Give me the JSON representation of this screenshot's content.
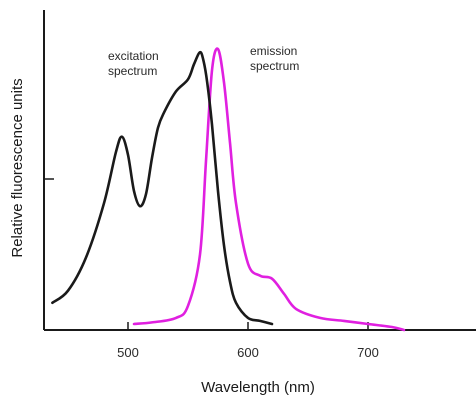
{
  "chart_data": {
    "type": "line",
    "title": "",
    "xlabel": "Wavelength (nm)",
    "ylabel": "Relative fluorescence units",
    "xlim": [
      430,
      790
    ],
    "ylim": [
      0,
      100
    ],
    "x_ticks": [
      500,
      600,
      700
    ],
    "x_tick_labels": [
      "500",
      "600",
      "700"
    ],
    "y_ticks": [
      50
    ],
    "grid": false,
    "legend": "none",
    "series": [
      {
        "key": "excitation",
        "color": "#1a1a1a",
        "x": [
          437,
          450,
          465,
          480,
          490,
          495,
          500,
          505,
          510,
          515,
          520,
          525,
          530,
          540,
          550,
          555,
          560,
          563,
          566,
          570,
          575,
          580,
          585,
          590,
          600,
          610,
          620
        ],
        "y": [
          9,
          13,
          24,
          42,
          59,
          64,
          58,
          46,
          41,
          45,
          57,
          67,
          72,
          79,
          83,
          88,
          92,
          89,
          82,
          68,
          46,
          28,
          16,
          9,
          4,
          3,
          2
        ]
      },
      {
        "key": "emission",
        "color": "#e020e0",
        "x": [
          505,
          520,
          540,
          550,
          560,
          565,
          570,
          575,
          580,
          585,
          590,
          600,
          610,
          620,
          630,
          640,
          660,
          680,
          700,
          720,
          730
        ],
        "y": [
          2,
          2.5,
          4,
          8,
          25,
          56,
          86,
          93,
          82,
          62,
          42,
          22,
          18,
          17,
          12,
          7,
          4,
          3,
          2,
          1,
          0
        ]
      }
    ],
    "annotations": [
      {
        "series": "excitation",
        "lines": [
          "excitation",
          "spectrum"
        ]
      },
      {
        "series": "emission",
        "lines": [
          "emission",
          "spectrum"
        ]
      }
    ]
  }
}
